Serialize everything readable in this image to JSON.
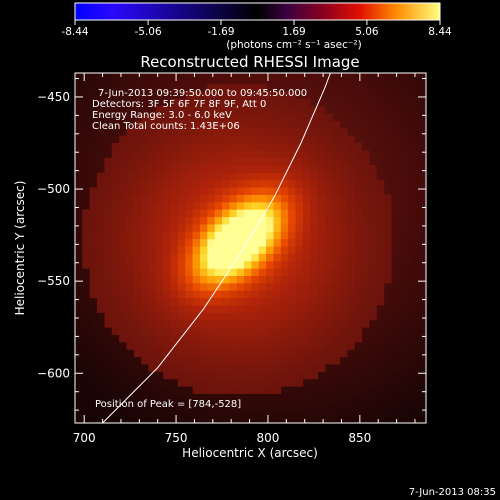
{
  "chart_data": {
    "type": "heatmap",
    "title": "Reconstructed RHESSI Image",
    "xlabel": "Heliocentric X (arcsec)",
    "ylabel": "Heliocentric Y (arcsec)",
    "xlim": [
      695,
      886
    ],
    "ylim": [
      -627,
      -437
    ],
    "x_ticks": [
      700,
      750,
      800,
      850
    ],
    "y_ticks": [
      -450,
      -500,
      -550,
      -600
    ],
    "colorbar": {
      "range": [
        -8.44,
        8.44
      ],
      "ticks": [
        "-8.44",
        "-5.06",
        "-1.69",
        "1.69",
        "5.06",
        "8.44"
      ],
      "unit": "(photons cm⁻² s⁻¹ asec⁻²)"
    },
    "annotations": [
      "7-Jun-2013 09:39:50.000 to 09:45:50.000",
      "Detectors: 3F 5F 6F 7F 8F 9F, Att 0",
      "Energy Range: 3.0 - 6.0 keV",
      "Clean    Total counts: 1.43E+06"
    ],
    "peak_label": "Position of Peak = [784,-528]",
    "peak": {
      "x": 784,
      "y": -528,
      "value": 8.44
    },
    "limb_curve": [
      [
        710,
        -627
      ],
      [
        740,
        -597
      ],
      [
        765,
        -565
      ],
      [
        785,
        -535
      ],
      [
        803,
        -505
      ],
      [
        818,
        -475
      ],
      [
        831,
        -445
      ],
      [
        834,
        -437
      ]
    ],
    "footer": "7-Jun-2013 08:35"
  }
}
